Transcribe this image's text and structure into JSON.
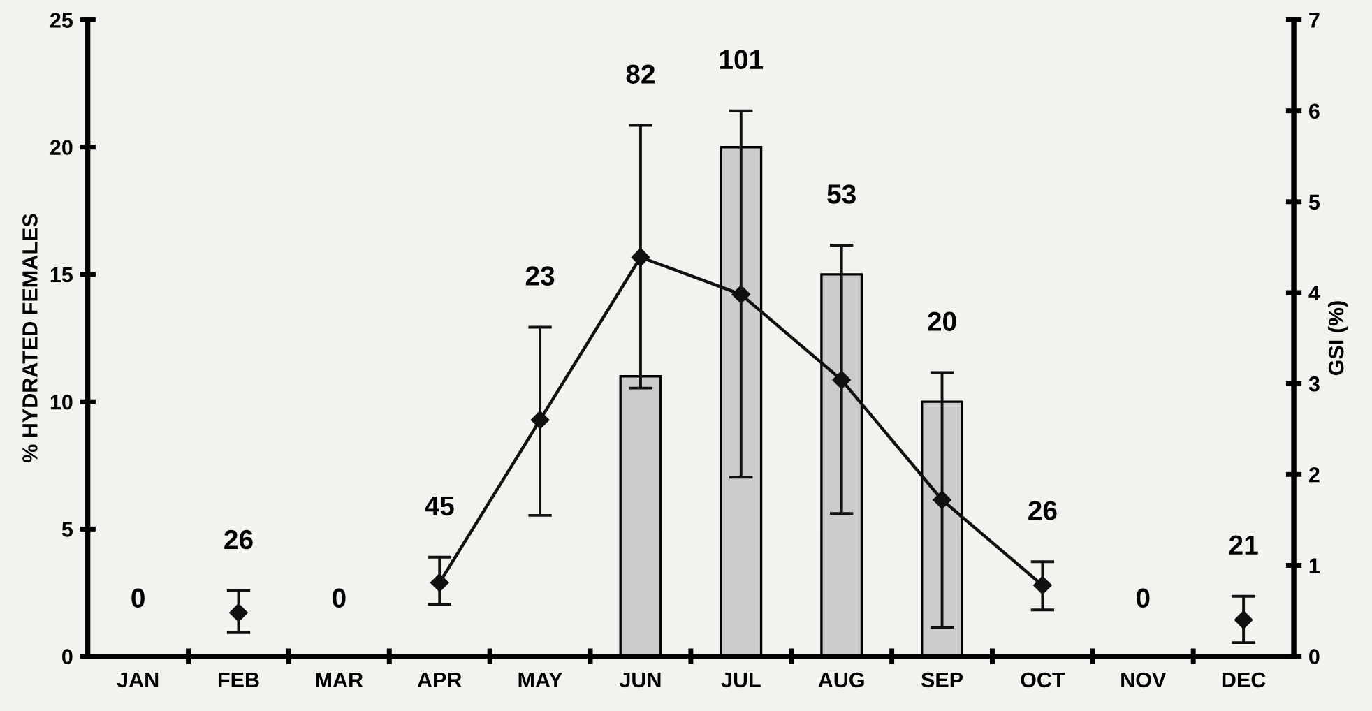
{
  "chart_data": {
    "type": "bar",
    "categories": [
      "JAN",
      "FEB",
      "MAR",
      "APR",
      "MAY",
      "JUN",
      "JUL",
      "AUG",
      "SEP",
      "OCT",
      "NOV",
      "DEC"
    ],
    "ylabel": "% HYDRATED FEMALES",
    "y2label": "GSI (%)",
    "ylim": [
      0,
      25
    ],
    "yticks": [
      0,
      5,
      10,
      15,
      20,
      25
    ],
    "y2lim": [
      0,
      7
    ],
    "y2ticks": [
      0,
      1,
      2,
      3,
      4,
      5,
      6,
      7
    ],
    "series": [
      {
        "color": "#cccccc",
        "values": [
          null,
          null,
          null,
          null,
          null,
          11,
          20,
          15,
          10,
          null,
          null,
          null
        ]
      },
      {
        "type": "line",
        "axis": "y2",
        "color": "#111111",
        "marker": "diamond",
        "values": [
          null,
          0.48,
          null,
          0.81,
          2.6,
          4.39,
          3.98,
          3.04,
          1.72,
          0.78,
          null,
          0.4
        ],
        "errors": [
          null,
          [
            0.26,
            0.72
          ],
          null,
          [
            0.57,
            1.09
          ],
          [
            1.55,
            3.62
          ],
          [
            2.95,
            5.84
          ],
          [
            1.97,
            6.0
          ],
          [
            1.57,
            4.52
          ],
          [
            0.32,
            3.12
          ],
          [
            0.51,
            1.04
          ],
          null,
          [
            0.15,
            0.66
          ]
        ]
      }
    ],
    "annotations": [
      "0",
      "26",
      "0",
      "45",
      "23",
      "82",
      "101",
      "53",
      "20",
      "26",
      "0",
      "21"
    ],
    "grid": false,
    "legend": false
  }
}
